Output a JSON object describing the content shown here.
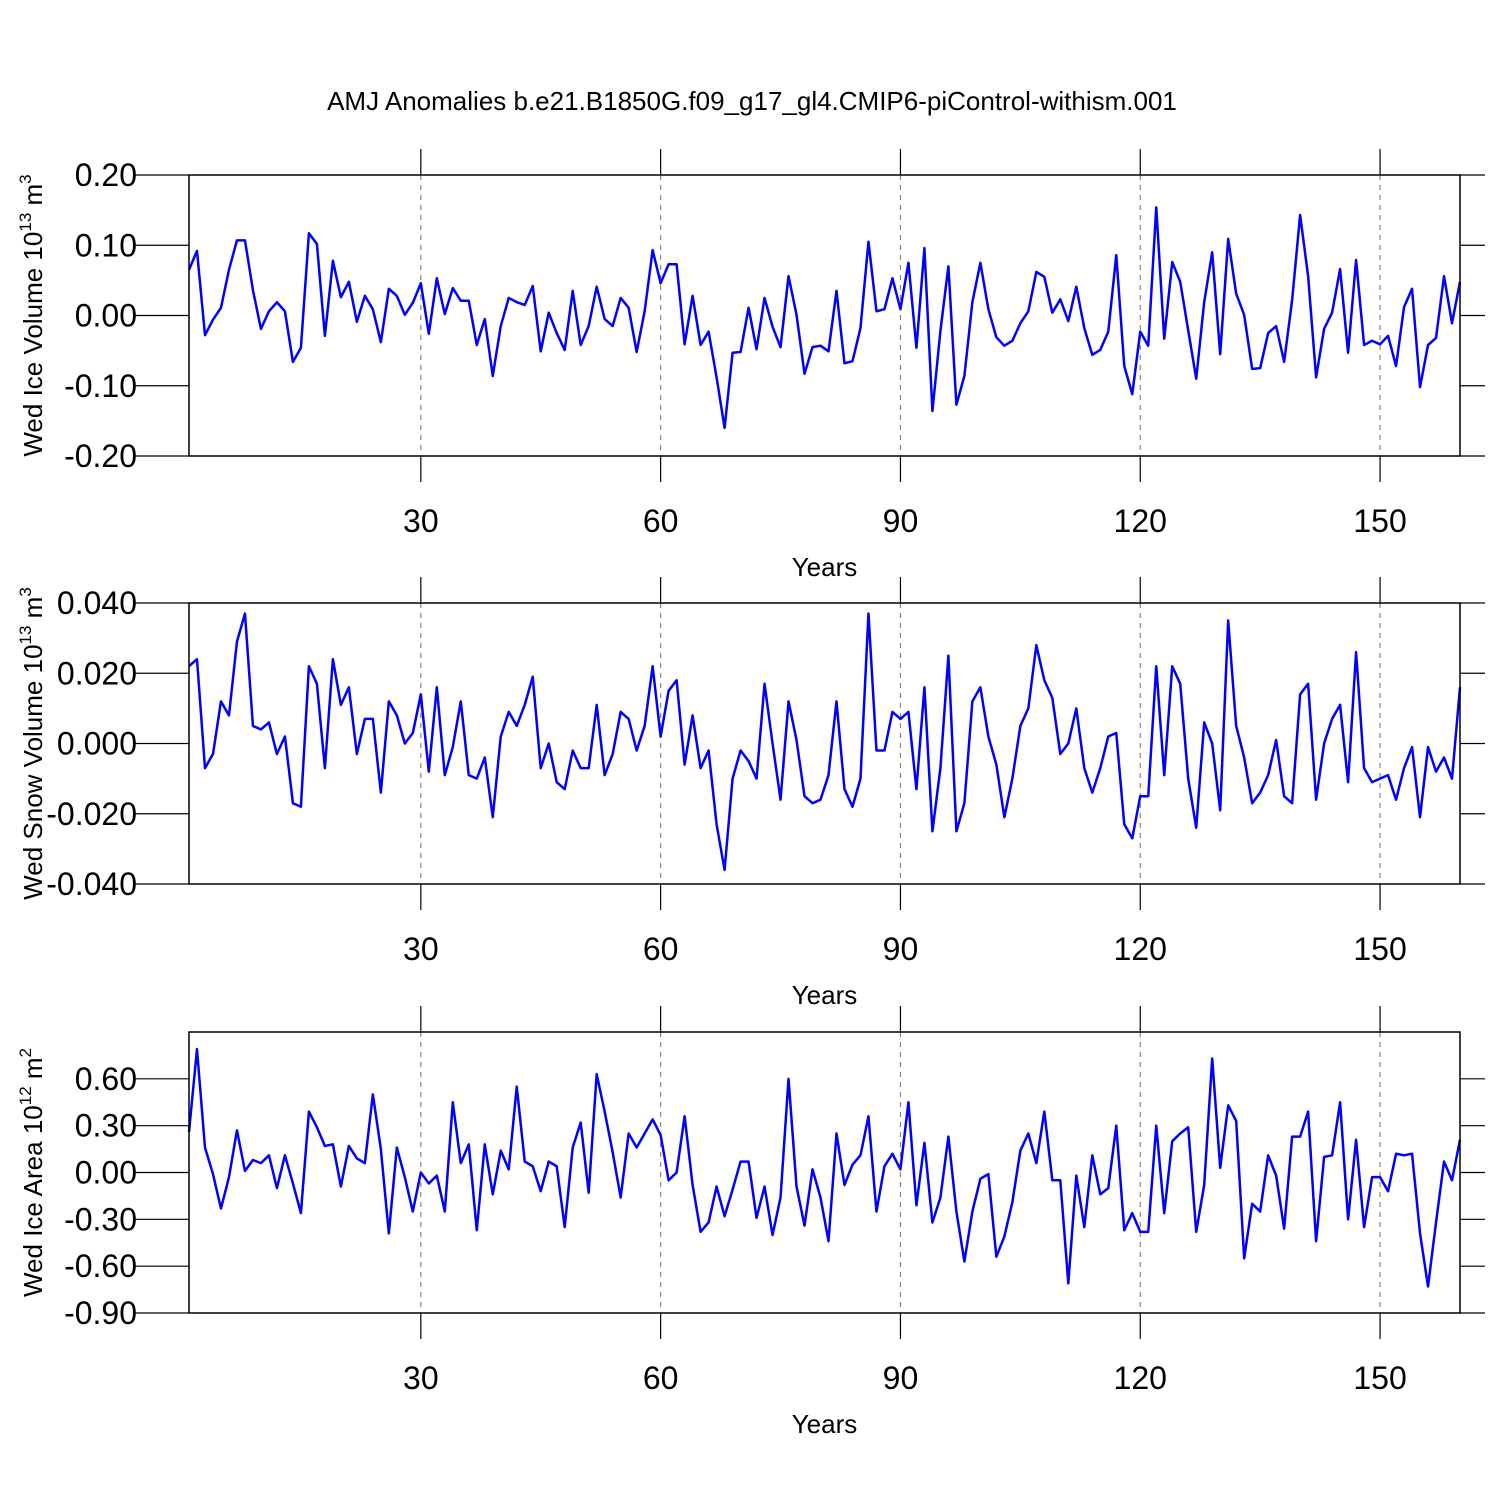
{
  "title": "AMJ Anomalies b.e21.B1850G.f09_g17_gl4.CMIP6-piControl-withism.001",
  "chart_data": [
    {
      "type": "line",
      "ylabel": [
        "Wed Ice Volume 10",
        "13",
        " m",
        "3"
      ],
      "xlabel": "Years",
      "color": "#0000ff",
      "grid": true,
      "xlim": [
        1,
        160
      ],
      "xticks": [
        30,
        60,
        90,
        120,
        150
      ],
      "ylim": [
        -0.2,
        0.2
      ],
      "yticks": [
        {
          "value": -0.2,
          "label": "-0.20"
        },
        {
          "value": -0.1,
          "label": "-0.10"
        },
        {
          "value": 0,
          "label": "0.00"
        },
        {
          "value": 0.1,
          "label": "0.10"
        },
        {
          "value": 0.2,
          "label": "0.20"
        }
      ],
      "x": [
        1,
        2,
        3,
        4,
        5,
        6,
        7,
        8,
        9,
        10,
        11,
        12,
        13,
        14,
        15,
        16,
        17,
        18,
        19,
        20,
        21,
        22,
        23,
        24,
        25,
        26,
        27,
        28,
        29,
        30,
        31,
        32,
        33,
        34,
        35,
        36,
        37,
        38,
        39,
        40,
        41,
        42,
        43,
        44,
        45,
        46,
        47,
        48,
        49,
        50,
        51,
        52,
        53,
        54,
        55,
        56,
        57,
        58,
        59,
        60,
        61,
        62,
        63,
        64,
        65,
        66,
        67,
        68,
        69,
        70,
        71,
        72,
        73,
        74,
        75,
        76,
        77,
        78,
        79,
        80,
        81,
        82,
        83,
        84,
        85,
        86,
        87,
        88,
        89,
        90,
        91,
        92,
        93,
        94,
        95,
        96,
        97,
        98,
        99,
        100,
        101,
        102,
        103,
        104,
        105,
        106,
        107,
        108,
        109,
        110,
        111,
        112,
        113,
        114,
        115,
        116,
        117,
        118,
        119,
        120,
        121,
        122,
        123,
        124,
        125,
        126,
        127,
        128,
        129,
        130,
        131,
        132,
        133,
        134,
        135,
        136,
        137,
        138,
        139,
        140,
        141,
        142,
        143,
        144,
        145,
        146,
        147,
        148,
        149,
        150,
        151,
        152,
        153,
        154,
        155,
        156,
        157,
        158,
        159,
        160
      ],
      "values": [
        0.065,
        0.092,
        -0.028,
        -0.006,
        0.011,
        0.065,
        0.107,
        0.107,
        0.036,
        -0.019,
        0.006,
        0.019,
        0.006,
        -0.066,
        -0.046,
        0.117,
        0.102,
        -0.029,
        0.078,
        0.026,
        0.048,
        -0.009,
        0.028,
        0.009,
        -0.038,
        0.038,
        0.028,
        0.001,
        0.018,
        0.046,
        -0.026,
        0.053,
        0.002,
        0.039,
        0.021,
        0.021,
        -0.042,
        -0.005,
        -0.086,
        -0.015,
        0.025,
        0.019,
        0.015,
        0.042,
        -0.051,
        0.004,
        -0.025,
        -0.049,
        0.035,
        -0.042,
        -0.015,
        0.041,
        -0.005,
        -0.015,
        0.025,
        0.011,
        -0.052,
        0.006,
        0.093,
        0.046,
        0.073,
        0.073,
        -0.041,
        0.028,
        -0.042,
        -0.023,
        -0.088,
        -0.16,
        -0.053,
        -0.052,
        0.011,
        -0.048,
        0.025,
        -0.016,
        -0.045,
        0.056,
        0.001,
        -0.083,
        -0.045,
        -0.043,
        -0.051,
        0.035,
        -0.068,
        -0.065,
        -0.018,
        0.105,
        0.006,
        0.009,
        0.053,
        0.009,
        0.075,
        -0.046,
        0.096,
        -0.136,
        -0.022,
        0.07,
        -0.127,
        -0.086,
        0.019,
        0.075,
        0.009,
        -0.031,
        -0.043,
        -0.036,
        -0.011,
        0.006,
        0.062,
        0.055,
        0.004,
        0.023,
        -0.008,
        0.041,
        -0.018,
        -0.056,
        -0.049,
        -0.023,
        0.086,
        -0.072,
        -0.112,
        -0.023,
        -0.043,
        0.154,
        -0.033,
        0.076,
        0.048,
        -0.021,
        -0.09,
        0.019,
        0.09,
        -0.055,
        0.109,
        0.031,
        0.001,
        -0.076,
        -0.075,
        -0.025,
        -0.015,
        -0.066,
        0.022,
        0.143,
        0.056,
        -0.088,
        -0.019,
        0.004,
        0.066,
        -0.053,
        0.079,
        -0.042,
        -0.036,
        -0.041,
        -0.029,
        -0.072,
        0.012,
        0.038,
        -0.102,
        -0.042,
        -0.032,
        0.056,
        -0.011,
        0.048
      ]
    },
    {
      "type": "line",
      "ylabel": [
        "Wed Snow Volume 10",
        "13",
        " m",
        "3"
      ],
      "xlabel": "Years",
      "color": "#0000ff",
      "grid": true,
      "xlim": [
        1,
        160
      ],
      "xticks": [
        30,
        60,
        90,
        120,
        150
      ],
      "ylim": [
        -0.04,
        0.04
      ],
      "yticks": [
        {
          "value": -0.04,
          "label": "-0.040"
        },
        {
          "value": -0.02,
          "label": "-0.020"
        },
        {
          "value": 0,
          "label": "0.000"
        },
        {
          "value": 0.02,
          "label": "0.020"
        },
        {
          "value": 0.04,
          "label": "0.040"
        }
      ],
      "x": [
        1,
        2,
        3,
        4,
        5,
        6,
        7,
        8,
        9,
        10,
        11,
        12,
        13,
        14,
        15,
        16,
        17,
        18,
        19,
        20,
        21,
        22,
        23,
        24,
        25,
        26,
        27,
        28,
        29,
        30,
        31,
        32,
        33,
        34,
        35,
        36,
        37,
        38,
        39,
        40,
        41,
        42,
        43,
        44,
        45,
        46,
        47,
        48,
        49,
        50,
        51,
        52,
        53,
        54,
        55,
        56,
        57,
        58,
        59,
        60,
        61,
        62,
        63,
        64,
        65,
        66,
        67,
        68,
        69,
        70,
        71,
        72,
        73,
        74,
        75,
        76,
        77,
        78,
        79,
        80,
        81,
        82,
        83,
        84,
        85,
        86,
        87,
        88,
        89,
        90,
        91,
        92,
        93,
        94,
        95,
        96,
        97,
        98,
        99,
        100,
        101,
        102,
        103,
        104,
        105,
        106,
        107,
        108,
        109,
        110,
        111,
        112,
        113,
        114,
        115,
        116,
        117,
        118,
        119,
        120,
        121,
        122,
        123,
        124,
        125,
        126,
        127,
        128,
        129,
        130,
        131,
        132,
        133,
        134,
        135,
        136,
        137,
        138,
        139,
        140,
        141,
        142,
        143,
        144,
        145,
        146,
        147,
        148,
        149,
        150,
        151,
        152,
        153,
        154,
        155,
        156,
        157,
        158,
        159,
        160
      ],
      "values": [
        0.022,
        0.024,
        -0.007,
        -0.003,
        0.012,
        0.008,
        0.029,
        0.037,
        0.005,
        0.004,
        0.006,
        -0.003,
        0.002,
        -0.017,
        -0.018,
        0.022,
        0.017,
        -0.007,
        0.024,
        0.011,
        0.016,
        -0.003,
        0.007,
        0.007,
        -0.014,
        0.012,
        0.008,
        0.0,
        0.003,
        0.014,
        -0.008,
        0.016,
        -0.009,
        -0.001,
        0.012,
        -0.009,
        -0.01,
        -0.004,
        -0.021,
        0.002,
        0.009,
        0.005,
        0.011,
        0.019,
        -0.007,
        0.0,
        -0.011,
        -0.013,
        -0.002,
        -0.007,
        -0.007,
        0.011,
        -0.009,
        -0.003,
        0.009,
        0.007,
        -0.002,
        0.005,
        0.022,
        0.002,
        0.015,
        0.018,
        -0.006,
        0.008,
        -0.007,
        -0.002,
        -0.023,
        -0.036,
        -0.01,
        -0.002,
        -0.005,
        -0.01,
        0.017,
        0.0,
        -0.016,
        0.012,
        0.001,
        -0.015,
        -0.017,
        -0.016,
        -0.009,
        0.012,
        -0.013,
        -0.018,
        -0.01,
        0.037,
        -0.002,
        -0.002,
        0.009,
        0.007,
        0.009,
        -0.013,
        0.016,
        -0.025,
        -0.007,
        0.025,
        -0.025,
        -0.017,
        0.012,
        0.016,
        0.002,
        -0.006,
        -0.021,
        -0.01,
        0.005,
        0.01,
        0.028,
        0.018,
        0.013,
        -0.003,
        0.0,
        0.01,
        -0.007,
        -0.014,
        -0.007,
        0.002,
        0.003,
        -0.023,
        -0.027,
        -0.015,
        -0.015,
        0.022,
        -0.009,
        0.022,
        0.017,
        -0.01,
        -0.024,
        0.006,
        0.0,
        -0.019,
        0.035,
        0.005,
        -0.004,
        -0.017,
        -0.014,
        -0.009,
        0.001,
        -0.015,
        -0.017,
        0.014,
        0.017,
        -0.016,
        0.0,
        0.007,
        0.011,
        -0.011,
        0.026,
        -0.007,
        -0.011,
        -0.01,
        -0.009,
        -0.016,
        -0.007,
        -0.001,
        -0.021,
        -0.001,
        -0.008,
        -0.004,
        -0.01,
        0.016
      ]
    },
    {
      "type": "line",
      "ylabel": [
        "Wed Ice Area 10",
        "12",
        " m",
        "2"
      ],
      "xlabel": "Years",
      "color": "#0000ff",
      "grid": true,
      "xlim": [
        1,
        160
      ],
      "xticks": [
        30,
        60,
        90,
        120,
        150
      ],
      "ylim": [
        -0.9,
        0.9
      ],
      "yticks": [
        {
          "value": -0.9,
          "label": "-0.90"
        },
        {
          "value": -0.6,
          "label": "-0.60"
        },
        {
          "value": -0.3,
          "label": "-0.30"
        },
        {
          "value": 0,
          "label": "0.00"
        },
        {
          "value": 0.3,
          "label": "0.30"
        },
        {
          "value": 0.6,
          "label": "0.60"
        }
      ],
      "x": [
        1,
        2,
        3,
        4,
        5,
        6,
        7,
        8,
        9,
        10,
        11,
        12,
        13,
        14,
        15,
        16,
        17,
        18,
        19,
        20,
        21,
        22,
        23,
        24,
        25,
        26,
        27,
        28,
        29,
        30,
        31,
        32,
        33,
        34,
        35,
        36,
        37,
        38,
        39,
        40,
        41,
        42,
        43,
        44,
        45,
        46,
        47,
        48,
        49,
        50,
        51,
        52,
        53,
        54,
        55,
        56,
        57,
        58,
        59,
        60,
        61,
        62,
        63,
        64,
        65,
        66,
        67,
        68,
        69,
        70,
        71,
        72,
        73,
        74,
        75,
        76,
        77,
        78,
        79,
        80,
        81,
        82,
        83,
        84,
        85,
        86,
        87,
        88,
        89,
        90,
        91,
        92,
        93,
        94,
        95,
        96,
        97,
        98,
        99,
        100,
        101,
        102,
        103,
        104,
        105,
        106,
        107,
        108,
        109,
        110,
        111,
        112,
        113,
        114,
        115,
        116,
        117,
        118,
        119,
        120,
        121,
        122,
        123,
        124,
        125,
        126,
        127,
        128,
        129,
        130,
        131,
        132,
        133,
        134,
        135,
        136,
        137,
        138,
        139,
        140,
        141,
        142,
        143,
        144,
        145,
        146,
        147,
        148,
        149,
        150,
        151,
        152,
        153,
        154,
        155,
        156,
        157,
        158,
        159,
        160
      ],
      "values": [
        0.26,
        0.79,
        0.16,
        -0.01,
        -0.23,
        -0.03,
        0.27,
        0.01,
        0.08,
        0.06,
        0.11,
        -0.1,
        0.11,
        -0.07,
        -0.26,
        0.39,
        0.29,
        0.17,
        0.18,
        -0.09,
        0.17,
        0.09,
        0.06,
        0.5,
        0.15,
        -0.39,
        0.16,
        -0.03,
        -0.25,
        0.0,
        -0.07,
        -0.02,
        -0.25,
        0.45,
        0.06,
        0.18,
        -0.37,
        0.18,
        -0.14,
        0.14,
        0.02,
        0.55,
        0.07,
        0.04,
        -0.12,
        0.07,
        0.04,
        -0.35,
        0.16,
        0.32,
        -0.13,
        0.63,
        0.39,
        0.13,
        -0.16,
        0.25,
        0.16,
        0.25,
        0.34,
        0.24,
        -0.05,
        0.0,
        0.36,
        -0.08,
        -0.38,
        -0.32,
        -0.09,
        -0.28,
        -0.11,
        0.07,
        0.07,
        -0.29,
        -0.09,
        -0.4,
        -0.16,
        0.6,
        -0.09,
        -0.34,
        0.02,
        -0.16,
        -0.44,
        0.25,
        -0.08,
        0.05,
        0.11,
        0.36,
        -0.25,
        0.04,
        0.12,
        0.02,
        0.45,
        -0.21,
        0.19,
        -0.32,
        -0.16,
        0.23,
        -0.25,
        -0.57,
        -0.25,
        -0.04,
        -0.01,
        -0.54,
        -0.41,
        -0.19,
        0.14,
        0.25,
        0.06,
        0.39,
        -0.05,
        -0.05,
        -0.71,
        -0.02,
        -0.35,
        0.11,
        -0.14,
        -0.1,
        0.3,
        -0.37,
        -0.26,
        -0.38,
        -0.38,
        0.3,
        -0.26,
        0.2,
        0.25,
        0.29,
        -0.38,
        -0.08,
        0.73,
        0.03,
        0.43,
        0.33,
        -0.55,
        -0.2,
        -0.25,
        0.11,
        -0.02,
        -0.36,
        0.23,
        0.23,
        0.39,
        -0.44,
        0.1,
        0.11,
        0.45,
        -0.3,
        0.21,
        -0.35,
        -0.03,
        -0.03,
        -0.12,
        0.12,
        0.11,
        0.12,
        -0.39,
        -0.73,
        -0.32,
        0.07,
        -0.05,
        0.21
      ]
    }
  ]
}
